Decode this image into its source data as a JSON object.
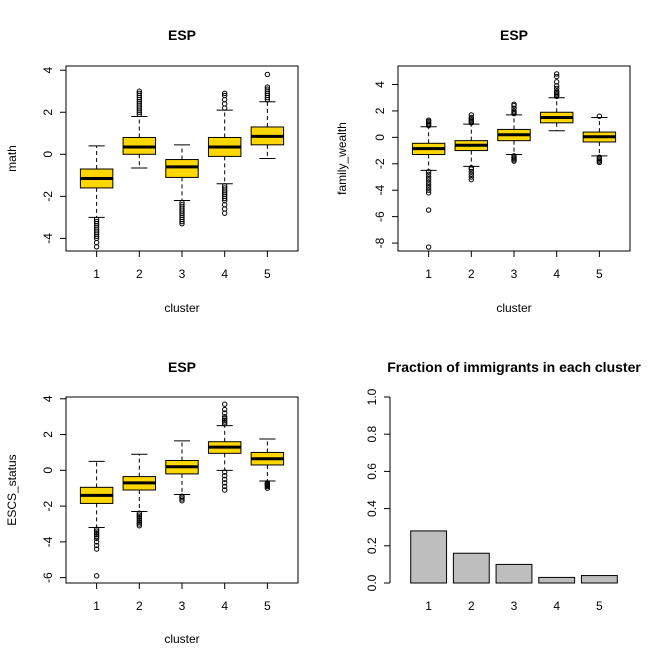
{
  "chart_data": [
    {
      "type": "boxplot",
      "title": "ESP",
      "xlabel": "cluster",
      "ylabel": "math",
      "ylim": [
        -4.6,
        4.2
      ],
      "yticks": [
        -4,
        -2,
        0,
        2,
        4
      ],
      "categories": [
        "1",
        "2",
        "3",
        "4",
        "5"
      ],
      "fill": "#FFD700",
      "boxes": [
        {
          "q1": -1.6,
          "median": -1.15,
          "q3": -0.7,
          "whisker_low": -3.0,
          "whisker_high": 0.4,
          "outliers": [
            -3.1,
            -3.2,
            -3.3,
            -3.4,
            -3.5,
            -3.6,
            -3.7,
            -3.8,
            -3.9,
            -4.0,
            -4.2,
            -4.4
          ]
        },
        {
          "q1": 0.0,
          "median": 0.35,
          "q3": 0.8,
          "whisker_low": -0.65,
          "whisker_high": 1.8,
          "outliers": [
            1.9,
            2.0,
            2.1,
            2.2,
            2.3,
            2.4,
            2.5,
            2.6,
            2.7,
            2.8,
            2.9,
            3.0
          ]
        },
        {
          "q1": -1.1,
          "median": -0.6,
          "q3": -0.25,
          "whisker_low": -2.2,
          "whisker_high": 0.45,
          "outliers": [
            -2.3,
            -2.4,
            -2.5,
            -2.6,
            -2.7,
            -2.8,
            -2.9,
            -3.0,
            -3.1,
            -3.2,
            -3.3
          ]
        },
        {
          "q1": -0.1,
          "median": 0.35,
          "q3": 0.8,
          "whisker_low": -1.4,
          "whisker_high": 2.1,
          "outliers": [
            -1.5,
            -1.6,
            -1.7,
            -1.8,
            -1.9,
            -2.0,
            -2.1,
            -2.2,
            -2.4,
            -2.6,
            -2.8,
            2.2,
            2.4,
            2.6,
            2.8,
            2.9
          ]
        },
        {
          "q1": 0.45,
          "median": 0.85,
          "q3": 1.3,
          "whisker_low": -0.2,
          "whisker_high": 2.5,
          "outliers": [
            2.6,
            2.7,
            2.8,
            2.9,
            3.0,
            3.1,
            3.2,
            3.8
          ]
        }
      ]
    },
    {
      "type": "boxplot",
      "title": "ESP",
      "xlabel": "cluster",
      "ylabel": "family_wealth",
      "ylim": [
        -8.6,
        5.4
      ],
      "yticks": [
        -8,
        -6,
        -4,
        -2,
        0,
        2,
        4
      ],
      "categories": [
        "1",
        "2",
        "3",
        "4",
        "5"
      ],
      "fill": "#FFD700",
      "boxes": [
        {
          "q1": -1.3,
          "median": -0.85,
          "q3": -0.45,
          "whisker_low": -2.5,
          "whisker_high": 0.8,
          "outliers": [
            -2.6,
            -2.8,
            -3.0,
            -3.2,
            -3.4,
            -3.6,
            -3.8,
            -4.0,
            -4.2,
            -5.5,
            -8.3,
            0.9,
            1.0,
            1.1,
            1.2,
            1.3
          ]
        },
        {
          "q1": -1.0,
          "median": -0.6,
          "q3": -0.25,
          "whisker_low": -2.2,
          "whisker_high": 1.0,
          "outliers": [
            -2.3,
            -2.4,
            -2.6,
            -2.8,
            -3.0,
            -3.2,
            1.1,
            1.2,
            1.3,
            1.4,
            1.5,
            1.7
          ]
        },
        {
          "q1": -0.25,
          "median": 0.2,
          "q3": 0.6,
          "whisker_low": -1.3,
          "whisker_high": 1.7,
          "outliers": [
            -1.4,
            -1.5,
            -1.6,
            -1.7,
            -1.8,
            1.8,
            1.9,
            2.0,
            2.2,
            2.4,
            2.5
          ]
        },
        {
          "q1": 1.1,
          "median": 1.5,
          "q3": 1.9,
          "whisker_low": 0.5,
          "whisker_high": 3.0,
          "outliers": [
            3.1,
            3.2,
            3.3,
            3.4,
            3.5,
            3.7,
            3.9,
            4.2,
            4.6,
            4.8
          ]
        },
        {
          "q1": -0.35,
          "median": 0.05,
          "q3": 0.4,
          "whisker_low": -1.4,
          "whisker_high": 1.5,
          "outliers": [
            -1.5,
            -1.6,
            -1.7,
            -1.8,
            -1.9,
            1.6
          ]
        }
      ]
    },
    {
      "type": "boxplot",
      "title": "ESP",
      "xlabel": "cluster",
      "ylabel": "ESCS_status",
      "ylim": [
        -6.3,
        4.1
      ],
      "yticks": [
        -6,
        -4,
        -2,
        0,
        2,
        4
      ],
      "categories": [
        "1",
        "2",
        "3",
        "4",
        "5"
      ],
      "fill": "#FFD700",
      "boxes": [
        {
          "q1": -1.85,
          "median": -1.4,
          "q3": -0.95,
          "whisker_low": -3.2,
          "whisker_high": 0.5,
          "outliers": [
            -3.3,
            -3.4,
            -3.5,
            -3.6,
            -3.7,
            -3.8,
            -4.0,
            -4.2,
            -4.4,
            -5.9
          ]
        },
        {
          "q1": -1.1,
          "median": -0.7,
          "q3": -0.35,
          "whisker_low": -2.3,
          "whisker_high": 0.9,
          "outliers": [
            -2.4,
            -2.5,
            -2.6,
            -2.7,
            -2.8,
            -2.9,
            -3.0,
            -3.1
          ]
        },
        {
          "q1": -0.2,
          "median": 0.2,
          "q3": 0.55,
          "whisker_low": -1.35,
          "whisker_high": 1.65,
          "outliers": [
            -1.45,
            -1.5,
            -1.6,
            -1.7
          ]
        },
        {
          "q1": 0.95,
          "median": 1.3,
          "q3": 1.6,
          "whisker_low": 0.0,
          "whisker_high": 2.5,
          "outliers": [
            -0.1,
            -0.3,
            -0.5,
            -0.7,
            -0.9,
            -1.1,
            2.6,
            2.7,
            2.8,
            2.9,
            3.0,
            3.2,
            3.4,
            3.7
          ]
        },
        {
          "q1": 0.3,
          "median": 0.65,
          "q3": 1.0,
          "whisker_low": -0.6,
          "whisker_high": 1.75,
          "outliers": [
            -0.7,
            -0.75,
            -0.8,
            -0.85,
            -0.9,
            -1.0
          ]
        }
      ]
    },
    {
      "type": "bar",
      "title": "Fraction of immigrants in each cluster",
      "xlabel": "",
      "ylabel": "",
      "ylim": [
        0,
        1.0
      ],
      "yticks": [
        "0.0",
        "0.2",
        "0.4",
        "0.6",
        "0.8",
        "1.0"
      ],
      "categories": [
        "1",
        "2",
        "3",
        "4",
        "5"
      ],
      "values": [
        0.28,
        0.16,
        0.1,
        0.03,
        0.04
      ],
      "fill": "#BEBEBE"
    }
  ]
}
